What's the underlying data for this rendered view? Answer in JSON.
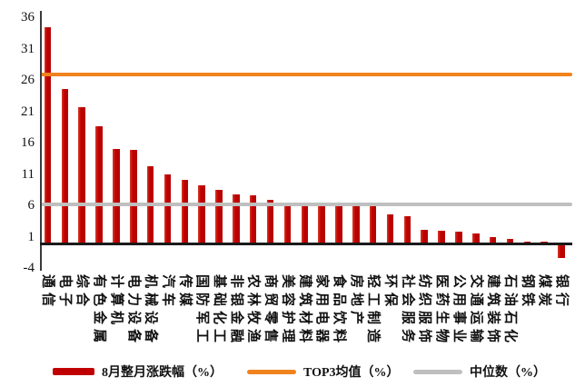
{
  "chart_data": {
    "type": "bar",
    "title": "",
    "xlabel": "",
    "ylabel": "",
    "ylim": [
      -4,
      36
    ],
    "yticks": [
      36,
      31,
      26,
      21,
      16,
      11,
      6,
      1,
      -4
    ],
    "grid": false,
    "legend_position": "bottom",
    "axis_color": "#1a1a1a",
    "categories": [
      "通信",
      "电子",
      "综合",
      "有色金属",
      "计算机",
      "电力设备",
      "机械设备",
      "汽车",
      "传媒",
      "国防军工",
      "基础化工",
      "非银金融",
      "农林牧渔",
      "商贸零售",
      "美容护理",
      "建筑材料",
      "家用电器",
      "食品饮料",
      "房地产",
      "轻工制造",
      "环保",
      "社会服务",
      "纺织服饰",
      "医药生物",
      "公用事业",
      "交通运输",
      "建筑装饰",
      "石油石化",
      "钢铁",
      "煤炭",
      "银行"
    ],
    "series": [
      {
        "name": "8月整月涨跌幅（%）",
        "type": "bar",
        "color": "#C00000",
        "values": [
          34.5,
          24.7,
          21.8,
          18.8,
          15.1,
          15.0,
          12.4,
          11.1,
          10.2,
          9.4,
          8.6,
          7.9,
          7.8,
          7.0,
          6.4,
          6.3,
          6.2,
          6.2,
          6.1,
          6.0,
          4.7,
          4.4,
          2.2,
          2.1,
          1.9,
          1.6,
          1.1,
          0.8,
          0.4,
          0.3,
          -2.2
        ]
      },
      {
        "name": "TOP3均值（%）",
        "type": "hline",
        "color": "#F0831E",
        "value": 27.0
      },
      {
        "name": "中位数（%）",
        "type": "hline",
        "color": "#BFBFBF",
        "value": 6.3
      }
    ]
  }
}
